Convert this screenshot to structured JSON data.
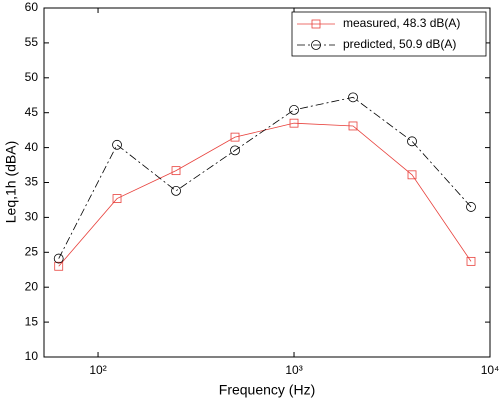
{
  "chart_data": {
    "type": "line",
    "x_label": "Frequency (Hz)",
    "y_label": "Leq,1h (dBA)",
    "x": [
      63,
      125,
      250,
      500,
      1000,
      2000,
      4000,
      8000
    ],
    "series": [
      {
        "name": "measured, 48.3 dB(A)",
        "color": "#e8413c",
        "marker": "square",
        "line_style": "solid",
        "values": [
          23,
          32.7,
          36.7,
          41.5,
          43.5,
          43.1,
          36.1,
          23.7
        ]
      },
      {
        "name": "predicted, 50.9 dB(A)",
        "color": "#000000",
        "marker": "circle",
        "line_style": "dashdot",
        "values": [
          24.1,
          40.4,
          33.8,
          39.6,
          45.4,
          47.2,
          40.9,
          31.5
        ]
      }
    ],
    "x_scale": "log",
    "xlim": [
      53,
      10000
    ],
    "xticks": [
      {
        "value": 100,
        "label": "10²"
      },
      {
        "value": 1000,
        "label": "10³"
      },
      {
        "value": 10000,
        "label": "10⁴"
      }
    ],
    "ylim": [
      10,
      60
    ],
    "yticks": [
      10,
      15,
      20,
      25,
      30,
      35,
      40,
      45,
      50,
      55,
      60
    ],
    "grid": false,
    "legend": "upper right"
  }
}
